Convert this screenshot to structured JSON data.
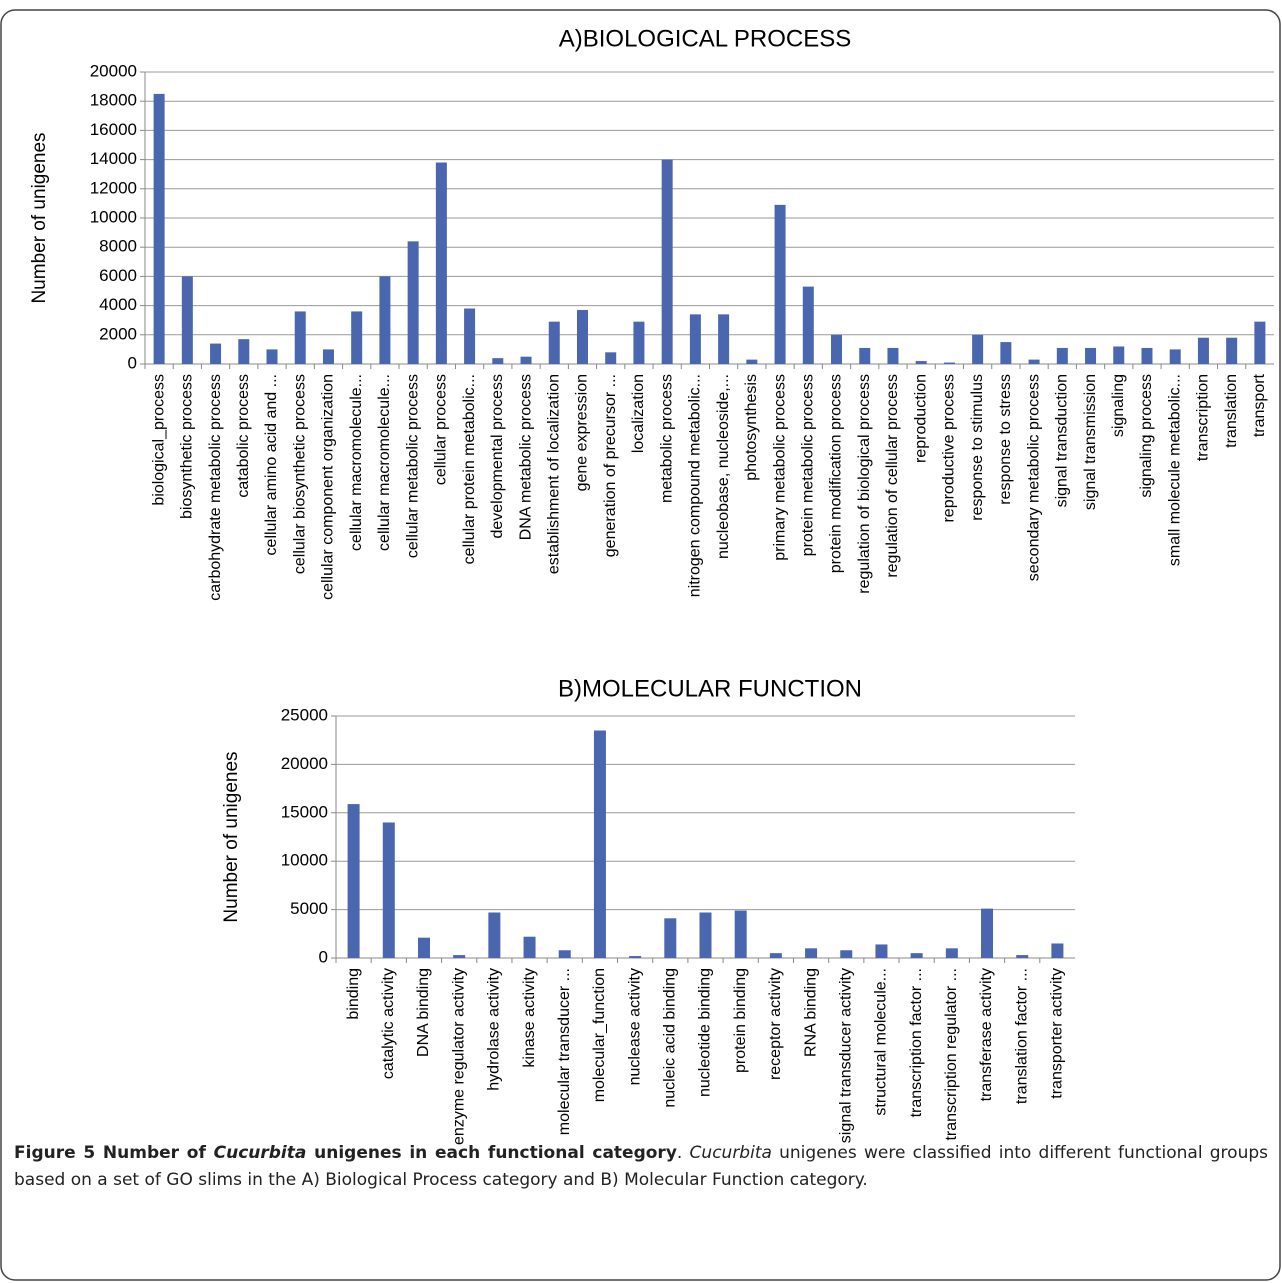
{
  "chart_data": [
    {
      "type": "bar",
      "title": "A)BIOLOGICAL PROCESS",
      "y_label": "Number of unigenes",
      "color": "#4a66ae",
      "grid": true,
      "categories": [
        "biological_process",
        "biosynthetic process",
        "carbohydrate metabolic process",
        "catabolic process",
        "cellular amino acid and ...",
        "cellular biosynthetic process",
        "cellular component organization",
        "cellular macromolecule...",
        "cellular macromolecule...",
        "cellular metabolic process",
        "cellular process",
        "cellular protein metabolic...",
        "developmental process",
        "DNA metabolic process",
        "establishment of localization",
        "gene expression",
        "generation of precursor ...",
        "localization",
        "metabolic process",
        "nitrogen compound metabolic...",
        "nucleobase, nucleoside,...",
        "photosynthesis",
        "primary metabolic process",
        "protein metabolic process",
        "protein modification process",
        "regulation of biological process",
        "regulation of cellular process",
        "reproduction",
        "reproductive process",
        "response to stimulus",
        "response to stress",
        "secondary metabolic process",
        "signal transduction",
        "signal transmission",
        "signaling",
        "signaling process",
        "small molecule metabolic...",
        "transcription",
        "translation",
        "transport"
      ],
      "values": [
        18500,
        6000,
        1400,
        1700,
        1000,
        3600,
        1000,
        3600,
        6000,
        8400,
        13800,
        3800,
        400,
        500,
        2900,
        3700,
        800,
        2900,
        14000,
        3400,
        3400,
        300,
        10900,
        5300,
        2000,
        1100,
        1100,
        200,
        100,
        2000,
        1500,
        300,
        1100,
        1100,
        1200,
        1100,
        1000,
        1800,
        1800,
        2900
      ],
      "ylim": [
        0,
        20000
      ],
      "yticks": [
        0,
        2000,
        4000,
        6000,
        8000,
        10000,
        12000,
        14000,
        16000,
        18000,
        20000
      ]
    },
    {
      "type": "bar",
      "title": "B)MOLECULAR FUNCTION",
      "y_label": "Number of unigenes",
      "color": "#4a66ae",
      "grid": true,
      "categories": [
        "binding",
        "catalytic activity",
        "DNA binding",
        "enzyme regulator activity",
        "hydrolase activity",
        "kinase activity",
        "molecular transducer ...",
        "molecular_function",
        "nuclease activity",
        "nucleic acid binding",
        "nucleotide binding",
        "protein binding",
        "receptor activity",
        "RNA binding",
        "signal transducer activity",
        "structural molecule...",
        "transcription factor ...",
        "transcription regulator ...",
        "transferase activity",
        "translation factor ...",
        "transporter activity"
      ],
      "values": [
        15900,
        14000,
        2100,
        300,
        4700,
        2200,
        800,
        23500,
        200,
        4100,
        4700,
        4900,
        500,
        1000,
        800,
        1400,
        500,
        1000,
        5100,
        300,
        1500
      ],
      "ylim": [
        0,
        25000
      ],
      "yticks": [
        0,
        5000,
        10000,
        15000,
        20000,
        25000
      ]
    }
  ],
  "caption": {
    "parts": [
      "Figure 5 Number of ",
      "Cucurbita",
      " unigenes in each functional category",
      ". ",
      "Cucurbita",
      " unigenes were classified into different functional groups based on a set of GO slims in the A) Biological Process category and B) Molecular Function category."
    ]
  }
}
